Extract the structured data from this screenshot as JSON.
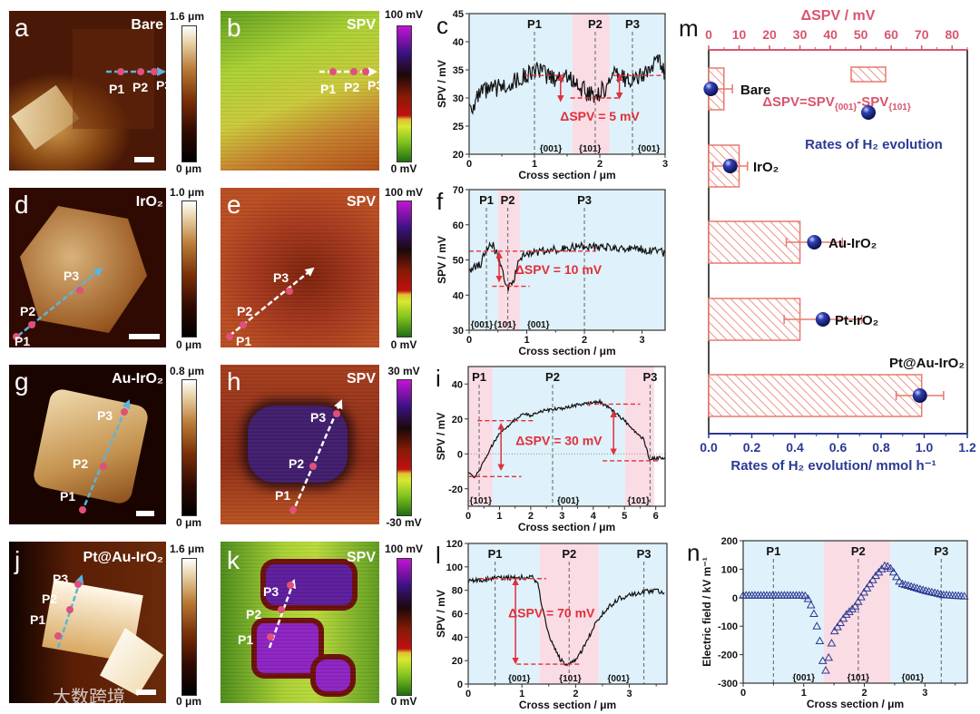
{
  "panels": [
    {
      "letter": "a",
      "label": "Bare",
      "colorbar": {
        "max": "1.6 μm",
        "min": "0 μm"
      }
    },
    {
      "letter": "b",
      "label": "SPV",
      "colorbar": {
        "max": "100 mV",
        "min": "0 mV"
      }
    },
    {
      "letter": "d",
      "label": "IrO₂",
      "colorbar": {
        "max": "1.0 μm",
        "min": "0 μm"
      }
    },
    {
      "letter": "e",
      "label": "SPV",
      "colorbar": {
        "max": "100 mV",
        "min": "0 mV"
      }
    },
    {
      "letter": "g",
      "label": "Au-IrO₂",
      "colorbar": {
        "max": "0.8 μm",
        "min": "0 μm"
      }
    },
    {
      "letter": "h",
      "label": "SPV",
      "colorbar": {
        "max": "30 mV",
        "min": "-30 mV"
      }
    },
    {
      "letter": "j",
      "label": "Pt@Au-IrO₂",
      "colorbar": {
        "max": "1.6 μm",
        "min": "0 μm"
      }
    },
    {
      "letter": "k",
      "label": "SPV",
      "colorbar": {
        "max": "100 mV",
        "min": "0 mV"
      }
    }
  ],
  "point_labels": [
    "P1",
    "P2",
    "P3"
  ],
  "watermark": "大数跨境",
  "colors": {
    "blue_region": "#dff1fa",
    "pink_region": "#fadce5",
    "annotation": "#e0303a",
    "delta_axis": "#d9546e",
    "rate_axis": "#2b3a93",
    "bar": "#e8796d"
  },
  "chart_data": [
    {
      "panel": "c",
      "type": "line",
      "xlabel": "Cross section / μm",
      "ylabel": "SPV / mV",
      "xlim": [
        0,
        3
      ],
      "ylim": [
        20,
        45
      ],
      "xticks": [
        "0",
        "1",
        "2",
        "3"
      ],
      "xtick_values": [
        0,
        1,
        2,
        3
      ],
      "yticks": [
        "20",
        "25",
        "30",
        "35",
        "40",
        "45"
      ],
      "ytick_values": [
        20,
        25,
        30,
        35,
        40,
        45
      ],
      "regions": [
        {
          "from": 0,
          "to": 1.58,
          "color": "blue"
        },
        {
          "from": 1.58,
          "to": 2.15,
          "color": "pink"
        },
        {
          "from": 2.15,
          "to": 3,
          "color": "blue"
        }
      ],
      "markers": [
        {
          "label": "P1",
          "x": 1
        },
        {
          "label": "P2",
          "x": 1.93
        },
        {
          "label": "P3",
          "x": 2.5
        }
      ],
      "facet_labels": [
        {
          "text": "{001}",
          "x": 1.25
        },
        {
          "text": "{101}",
          "x": 1.85
        },
        {
          "text": "{001}",
          "x": 2.75
        }
      ],
      "points": [
        [
          0,
          29
        ],
        [
          0.05,
          28.5
        ],
        [
          0.2,
          31
        ],
        [
          0.5,
          32
        ],
        [
          0.8,
          33.5
        ],
        [
          1.0,
          35
        ],
        [
          1.3,
          33.5
        ],
        [
          1.5,
          34
        ],
        [
          1.6,
          33
        ],
        [
          1.8,
          31
        ],
        [
          1.95,
          30.5
        ],
        [
          2.1,
          32
        ],
        [
          2.2,
          34
        ],
        [
          2.4,
          33.5
        ],
        [
          2.6,
          33.5
        ],
        [
          2.8,
          35.5
        ],
        [
          2.9,
          37
        ],
        [
          3.0,
          34
        ]
      ],
      "noise": 1.6,
      "annotation": {
        "text": "ΔSPV = 5 mV",
        "x": 2.0,
        "y": 26,
        "levels": [
          {
            "y": 34,
            "x": [
              0.85,
              1.5
            ]
          },
          {
            "y": 30,
            "x": [
              1.55,
              2.3
            ]
          },
          {
            "y": 34,
            "x": [
              2.2,
              3.0
            ]
          }
        ],
        "arrows": [
          {
            "x": 1.4,
            "y": [
              34,
              29.5
            ]
          },
          {
            "x": 2.3,
            "y": [
              30,
              34
            ]
          }
        ]
      }
    },
    {
      "panel": "f",
      "type": "line",
      "xlabel": "Cross section / μm",
      "ylabel": "SPV / mV",
      "xlim": [
        0,
        3.4
      ],
      "ylim": [
        30,
        70
      ],
      "xticks": [
        "0",
        "1",
        "2",
        "3"
      ],
      "xtick_values": [
        0,
        1,
        2,
        3
      ],
      "yticks": [
        "30",
        "40",
        "50",
        "60",
        "70"
      ],
      "ytick_values": [
        30,
        40,
        50,
        60,
        70
      ],
      "regions": [
        {
          "from": 0,
          "to": 0.5,
          "color": "blue"
        },
        {
          "from": 0.5,
          "to": 0.88,
          "color": "pink"
        },
        {
          "from": 0.88,
          "to": 3.4,
          "color": "blue"
        }
      ],
      "markers": [
        {
          "label": "P1",
          "x": 0.3
        },
        {
          "label": "P2",
          "x": 0.67
        },
        {
          "label": "P3",
          "x": 2.0
        }
      ],
      "facet_labels": [
        {
          "text": "{001}",
          "x": 0.22
        },
        {
          "text": "{101}",
          "x": 0.62
        },
        {
          "text": "{001}",
          "x": 1.2
        }
      ],
      "points": [
        [
          0,
          47
        ],
        [
          0.2,
          49
        ],
        [
          0.3,
          53
        ],
        [
          0.4,
          54.5
        ],
        [
          0.5,
          51
        ],
        [
          0.6,
          45
        ],
        [
          0.68,
          42
        ],
        [
          0.75,
          43
        ],
        [
          0.85,
          49
        ],
        [
          1.0,
          52
        ],
        [
          1.5,
          53
        ],
        [
          2,
          54
        ],
        [
          2.5,
          53.5
        ],
        [
          3,
          53
        ],
        [
          3.4,
          52
        ]
      ],
      "noise": 1.2,
      "annotation": {
        "text": "ΔSPV = 10 mV",
        "x": 1.55,
        "y": 46,
        "levels": [
          {
            "y": 52.5,
            "x": [
              0,
              2.2
            ]
          },
          {
            "y": 42.5,
            "x": [
              0.4,
              1.05
            ]
          }
        ],
        "arrows": [
          {
            "x": 0.52,
            "y": [
              52,
              44
            ]
          }
        ]
      }
    },
    {
      "panel": "i",
      "type": "line",
      "xlabel": "Cross section / μm",
      "ylabel": "SPV / mV",
      "xlim": [
        0,
        6.3
      ],
      "ylim": [
        -30,
        50
      ],
      "zero_line": true,
      "xticks": [
        "0",
        "1",
        "2",
        "3",
        "4",
        "5",
        "6"
      ],
      "xtick_values": [
        0,
        1,
        2,
        3,
        4,
        5,
        6
      ],
      "yticks": [
        "-20",
        "0",
        "20",
        "40"
      ],
      "ytick_values": [
        -20,
        0,
        20,
        40
      ],
      "regions": [
        {
          "from": 0,
          "to": 0.78,
          "color": "pink"
        },
        {
          "from": 0.78,
          "to": 5.02,
          "color": "blue"
        },
        {
          "from": 5.02,
          "to": 5.95,
          "color": "pink"
        }
      ],
      "markers": [
        {
          "label": "P1",
          "x": 0.35
        },
        {
          "label": "P2",
          "x": 2.7
        },
        {
          "label": "P3",
          "x": 5.82
        }
      ],
      "facet_labels": [
        {
          "text": "{101}",
          "x": 0.4
        },
        {
          "text": "{001}",
          "x": 3.2
        },
        {
          "text": "{101}",
          "x": 5.45
        }
      ],
      "points": [
        [
          0,
          -11
        ],
        [
          0.2,
          -14
        ],
        [
          0.4,
          -8
        ],
        [
          0.7,
          3
        ],
        [
          1,
          12
        ],
        [
          1.3,
          16
        ],
        [
          1.7,
          23
        ],
        [
          2,
          22
        ],
        [
          2.5,
          25
        ],
        [
          3,
          26
        ],
        [
          3.5,
          28
        ],
        [
          4,
          29
        ],
        [
          4.2,
          30
        ],
        [
          4.6,
          25
        ],
        [
          5,
          19
        ],
        [
          5.3,
          13
        ],
        [
          5.6,
          9
        ],
        [
          5.8,
          -3
        ],
        [
          6.3,
          -2
        ]
      ],
      "noise": 1.0,
      "annotation": {
        "text": "ΔSPV = 30 mV",
        "x": 2.9,
        "y": 5,
        "levels": [
          {
            "y": 19,
            "x": [
              0.3,
              2.1
            ]
          },
          {
            "y": -13,
            "x": [
              0,
              1.7
            ]
          },
          {
            "y": 28.5,
            "x": [
              3.8,
              5.5
            ]
          },
          {
            "y": -4,
            "x": [
              4.3,
              6.1
            ]
          }
        ],
        "arrows": [
          {
            "x": 1.05,
            "y": [
              17,
              -9
            ]
          },
          {
            "x": 4.65,
            "y": [
              24,
              0
            ]
          }
        ]
      }
    },
    {
      "panel": "l",
      "type": "line",
      "xlabel": "Cross section / μm",
      "ylabel": "SPV / mV",
      "xlim": [
        0,
        3.7
      ],
      "ylim": [
        0,
        120
      ],
      "xticks": [
        "0",
        "1",
        "2",
        "3"
      ],
      "xtick_values": [
        0,
        1,
        2,
        3
      ],
      "yticks": [
        "0",
        "20",
        "40",
        "60",
        "80",
        "100",
        "120"
      ],
      "ytick_values": [
        0,
        20,
        40,
        60,
        80,
        100,
        120
      ],
      "regions": [
        {
          "from": 0,
          "to": 1.33,
          "color": "blue"
        },
        {
          "from": 1.33,
          "to": 2.43,
          "color": "pink"
        },
        {
          "from": 2.43,
          "to": 3.7,
          "color": "blue"
        }
      ],
      "markers": [
        {
          "label": "P1",
          "x": 0.5
        },
        {
          "label": "P2",
          "x": 1.88
        },
        {
          "label": "P3",
          "x": 3.27
        }
      ],
      "facet_labels": [
        {
          "text": "{001}",
          "x": 0.95
        },
        {
          "text": "{101}",
          "x": 1.9
        },
        {
          "text": "{001}",
          "x": 2.8
        }
      ],
      "points": [
        [
          0,
          88
        ],
        [
          0.5,
          90
        ],
        [
          1,
          91
        ],
        [
          1.2,
          91
        ],
        [
          1.3,
          85
        ],
        [
          1.4,
          60
        ],
        [
          1.5,
          42
        ],
        [
          1.7,
          22
        ],
        [
          1.85,
          16
        ],
        [
          2,
          20
        ],
        [
          2.2,
          35
        ],
        [
          2.4,
          55
        ],
        [
          2.6,
          65
        ],
        [
          2.8,
          73
        ],
        [
          3.2,
          78
        ],
        [
          3.5,
          80
        ],
        [
          3.65,
          78
        ]
      ],
      "noise": 2.0,
      "annotation": {
        "text": "ΔSPV = 70 mV",
        "x": 1.55,
        "y": 57,
        "levels": [
          {
            "y": 90,
            "x": [
              0.2,
              1.45
            ]
          },
          {
            "y": 17,
            "x": [
              0.9,
              2.1
            ]
          }
        ],
        "arrows": [
          {
            "x": 0.88,
            "y": [
              89,
              18
            ]
          }
        ]
      }
    },
    {
      "panel": "m",
      "type": "bar",
      "orientation": "horizontal",
      "categories": [
        "Bare",
        "IrO₂",
        "Au-IrO₂",
        "Pt-IrO₂",
        "Pt@Au-IrO₂"
      ],
      "delta_spv": [
        5,
        10,
        30,
        30,
        70
      ],
      "h2_rate": [
        0.01,
        0.1,
        0.49,
        0.53,
        0.98
      ],
      "h2_rate_error": [
        0.1,
        0.08,
        0.13,
        0.18,
        0.11
      ],
      "top_axis": {
        "label": "ΔSPV / mV",
        "lim": [
          0,
          85
        ],
        "ticks": [
          "0",
          "10",
          "20",
          "30",
          "40",
          "50",
          "60",
          "70",
          "80"
        ],
        "tick_values": [
          0,
          10,
          20,
          30,
          40,
          50,
          60,
          70,
          80
        ]
      },
      "bottom_axis": {
        "label": "Rates of  H₂ evolution/ mmol h⁻¹",
        "lim": [
          0,
          1.2
        ],
        "ticks": [
          "0.0",
          "0.2",
          "0.4",
          "0.6",
          "0.8",
          "1.0",
          "1.2"
        ],
        "tick_values": [
          0,
          0.2,
          0.4,
          0.6,
          0.8,
          1.0,
          1.2
        ]
      },
      "legend": {
        "bar_parts": [
          "ΔSPV=SPV",
          "{001}",
          "-SPV",
          "{101}"
        ],
        "marker": "Rates of H₂ evolution"
      }
    },
    {
      "panel": "n",
      "type": "scatter",
      "marker": "triangle",
      "xlabel": "Cross section / μm",
      "ylabel": "Electric field  / kV m⁻¹",
      "xlim": [
        0,
        3.7
      ],
      "ylim": [
        -300,
        200
      ],
      "xticks": [
        "0",
        "1",
        "2",
        "3"
      ],
      "xtick_values": [
        0,
        1,
        2,
        3
      ],
      "yticks": [
        "-300",
        "-200",
        "-100",
        "0",
        "100",
        "200"
      ],
      "ytick_values": [
        -300,
        -200,
        -100,
        0,
        100,
        200
      ],
      "regions": [
        {
          "from": 0,
          "to": 1.33,
          "color": "blue"
        },
        {
          "from": 1.33,
          "to": 2.43,
          "color": "pink"
        },
        {
          "from": 2.43,
          "to": 3.7,
          "color": "blue"
        }
      ],
      "markers": [
        {
          "label": "P1",
          "x": 0.5
        },
        {
          "label": "P2",
          "x": 1.9
        },
        {
          "label": "P3",
          "x": 3.27
        }
      ],
      "facet_labels": [
        {
          "text": "{001}",
          "x": 1.0
        },
        {
          "text": "{101}",
          "x": 1.9
        },
        {
          "text": "{001}",
          "x": 2.8
        }
      ],
      "points": [
        [
          0,
          8
        ],
        [
          0.5,
          8
        ],
        [
          1,
          8
        ],
        [
          1.05,
          5
        ],
        [
          1.15,
          -40
        ],
        [
          1.25,
          -130
        ],
        [
          1.32,
          -230
        ],
        [
          1.37,
          -260
        ],
        [
          1.42,
          -200
        ],
        [
          1.5,
          -120
        ],
        [
          1.7,
          -60
        ],
        [
          1.85,
          -30
        ],
        [
          2,
          20
        ],
        [
          2.2,
          80
        ],
        [
          2.35,
          115
        ],
        [
          2.45,
          100
        ],
        [
          2.6,
          50
        ],
        [
          3,
          25
        ],
        [
          3.3,
          10
        ],
        [
          3.65,
          5
        ]
      ],
      "noise": 0
    }
  ]
}
